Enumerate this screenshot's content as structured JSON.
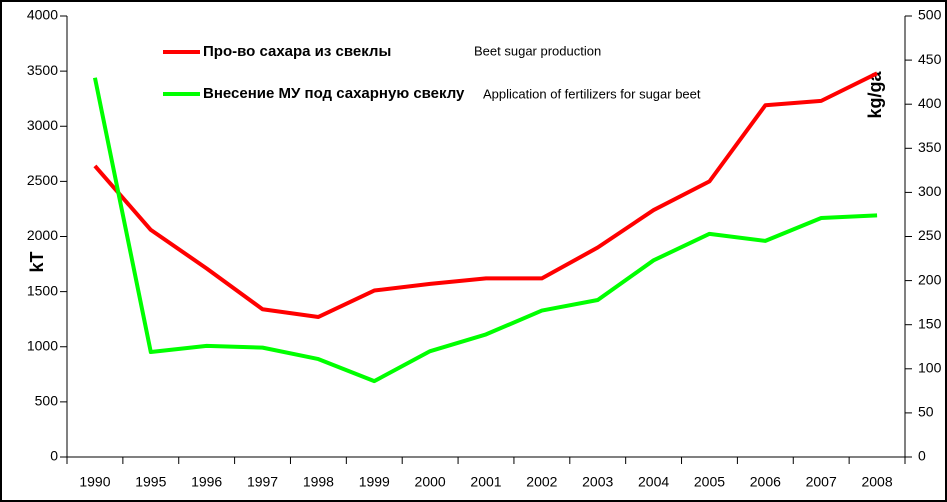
{
  "chart_data": {
    "type": "line",
    "categories": [
      "1990",
      "1995",
      "1996",
      "1997",
      "1998",
      "1999",
      "2000",
      "2001",
      "2002",
      "2003",
      "2004",
      "2005",
      "2006",
      "2007",
      "2008"
    ],
    "series": [
      {
        "name": "Про-во сахара из свеклы",
        "color": "#ff0000",
        "values": [
          2640,
          2060,
          1710,
          1340,
          1270,
          1510,
          1570,
          1620,
          1620,
          1900,
          2240,
          2500,
          3190,
          3230,
          3480
        ]
      },
      {
        "name": "Внесение МУ под сахарную свеклу",
        "color": "#00ff00",
        "axis": "y2",
        "values": [
          430,
          119,
          126,
          124,
          111,
          86,
          120,
          139,
          166,
          178,
          223,
          253,
          245,
          271,
          274
        ]
      }
    ],
    "annotations": [
      "Beet sugar production",
      "Application of fertilizers for sugar beet"
    ],
    "ylabel": "kT",
    "y2label": "kg/ga",
    "ylim": [
      0,
      4000
    ],
    "yticks": [
      0,
      500,
      1000,
      1500,
      2000,
      2500,
      3000,
      3500,
      4000
    ],
    "y2lim": [
      0,
      500
    ],
    "y2ticks": [
      0,
      50,
      100,
      150,
      200,
      250,
      300,
      350,
      400,
      450,
      500
    ],
    "grid": false
  }
}
